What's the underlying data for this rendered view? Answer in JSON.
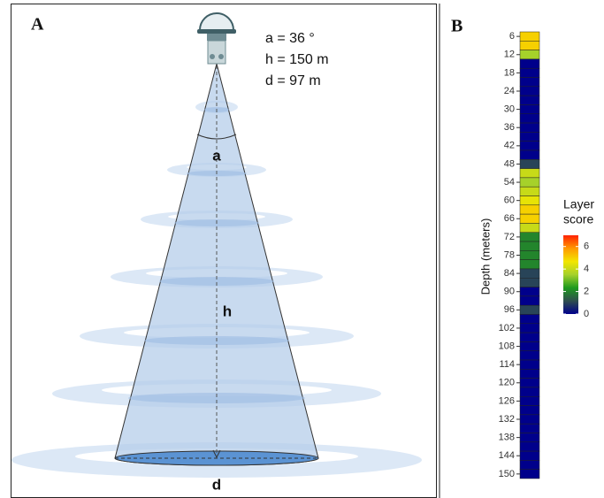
{
  "panel_a": {
    "label": "A",
    "params": [
      "a = 36 °",
      "h = 150 m",
      "d = 97 m"
    ],
    "angle_label": "a",
    "height_label": "h",
    "diameter_label": "d"
  },
  "chart_data": {
    "type": "heatcolumn",
    "label": "B",
    "ylabel": "Depth (meters)",
    "y": [
      6,
      9,
      12,
      15,
      18,
      21,
      24,
      27,
      30,
      33,
      36,
      39,
      42,
      45,
      48,
      51,
      54,
      57,
      60,
      63,
      66,
      69,
      72,
      75,
      78,
      81,
      84,
      87,
      90,
      93,
      96,
      99,
      102,
      105,
      108,
      111,
      114,
      117,
      120,
      123,
      126,
      129,
      132,
      135,
      138,
      141,
      144,
      147,
      150
    ],
    "values": [
      5,
      5,
      3.5,
      0,
      0,
      0,
      0,
      0,
      0,
      0,
      0,
      0,
      0,
      0,
      1,
      4,
      3.5,
      4,
      4.5,
      5,
      5,
      4,
      2,
      2,
      2,
      2,
      1,
      1,
      0,
      0,
      1,
      0,
      0,
      0,
      0,
      0,
      0,
      0,
      0,
      0,
      0,
      0,
      0,
      0,
      0,
      0,
      0,
      0,
      0
    ],
    "ylim": [
      4.5,
      151.5
    ],
    "y_reversed": true,
    "yticks": [
      6,
      12,
      18,
      24,
      30,
      36,
      42,
      48,
      54,
      60,
      66,
      72,
      78,
      84,
      90,
      96,
      102,
      108,
      114,
      120,
      126,
      132,
      138,
      144,
      150
    ],
    "legend_title": [
      "Layer",
      "score"
    ],
    "zlim": [
      0,
      7
    ],
    "colorbar_ticks": [
      0,
      2,
      4,
      6
    ],
    "colorscale": [
      "#00008b",
      "#2f4f4f",
      "#1e9a1e",
      "#a6d12a",
      "#f2e600",
      "#ff9900",
      "#ff2200"
    ]
  }
}
